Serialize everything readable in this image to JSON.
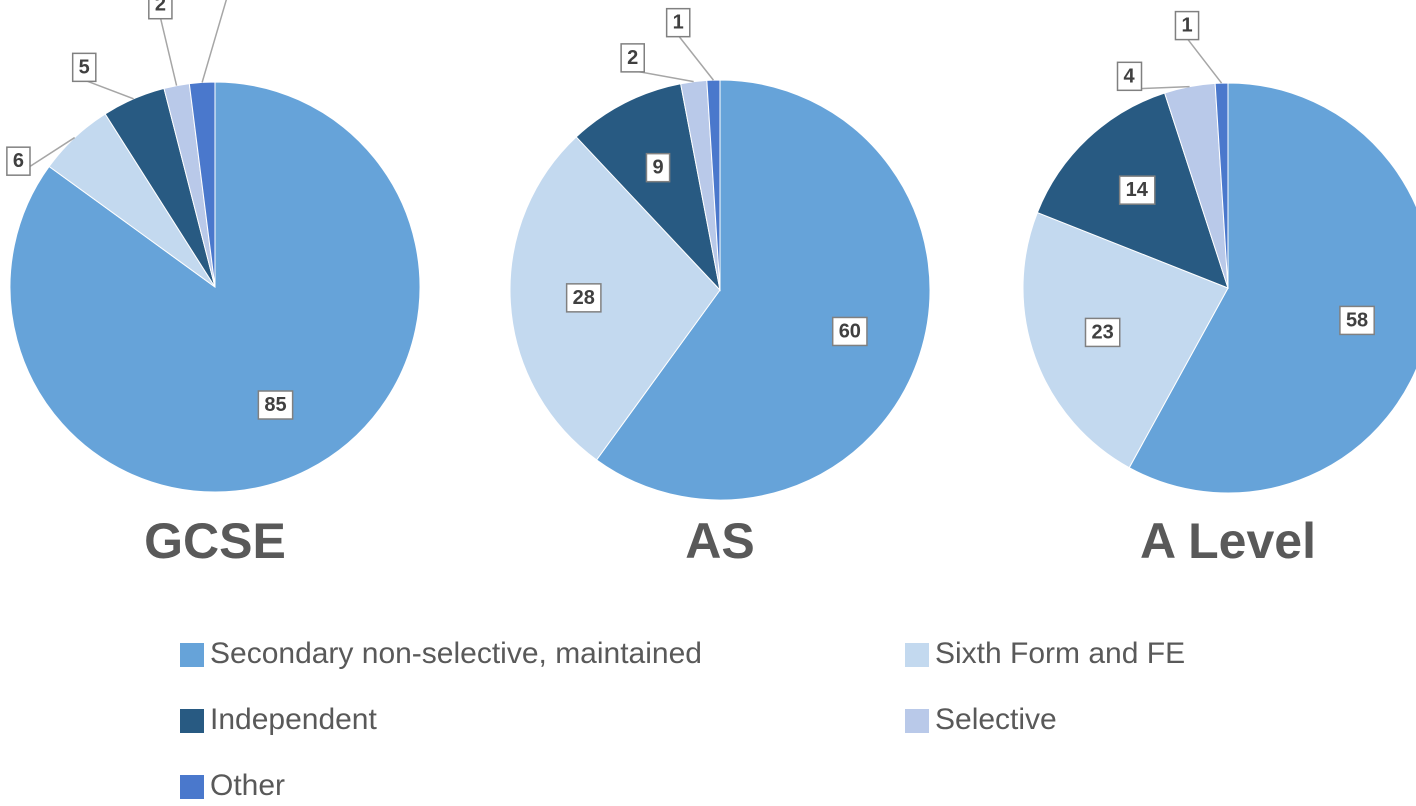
{
  "chart_data": [
    {
      "type": "pie",
      "title": "GCSE",
      "categories": [
        "Secondary non-selective, maintained",
        "Sixth Form and FE",
        "Independent",
        "Selective",
        "Other"
      ],
      "values": [
        85,
        6,
        5,
        2,
        2
      ],
      "colors": [
        "#66a3d9",
        "#c3d9ef",
        "#285a82",
        "#b9c9e9",
        "#4a78cc"
      ]
    },
    {
      "type": "pie",
      "title": "AS",
      "categories": [
        "Secondary non-selective, maintained",
        "Sixth Form and FE",
        "Independent",
        "Selective",
        "Other"
      ],
      "values": [
        60,
        28,
        9,
        2,
        1
      ],
      "colors": [
        "#66a3d9",
        "#c3d9ef",
        "#285a82",
        "#b9c9e9",
        "#4a78cc"
      ]
    },
    {
      "type": "pie",
      "title": "A Level",
      "categories": [
        "Secondary non-selective, maintained",
        "Sixth Form and FE",
        "Independent",
        "Selective",
        "Other"
      ],
      "values": [
        58,
        23,
        14,
        4,
        1
      ],
      "colors": [
        "#66a3d9",
        "#c3d9ef",
        "#285a82",
        "#b9c9e9",
        "#4a78cc"
      ]
    }
  ]
}
